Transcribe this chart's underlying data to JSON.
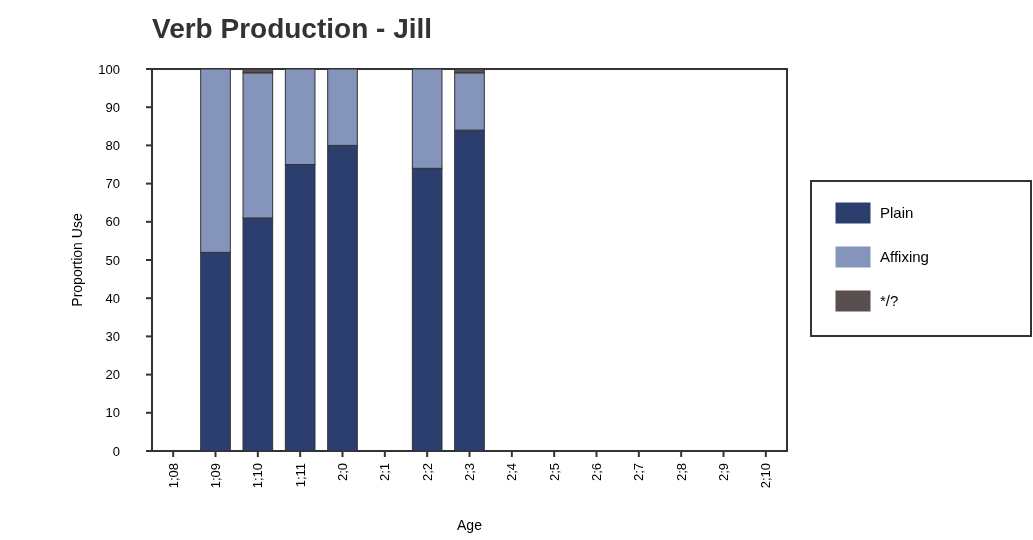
{
  "chart_data": {
    "type": "bar",
    "title": "Verb Production - Jill",
    "xlabel": "Age",
    "ylabel": "Proportion Use",
    "stacked": true,
    "categories": [
      "1;08",
      "1;09",
      "1;10",
      "1;11",
      "2;0",
      "2;1",
      "2;2",
      "2;3",
      "2;4",
      "2;5",
      "2;6",
      "2;7",
      "2;8",
      "2;9",
      "2;10"
    ],
    "series": [
      {
        "name": "Plain",
        "color": "#2c3e6e",
        "values": [
          null,
          52,
          61,
          75,
          80,
          null,
          74,
          84,
          null,
          null,
          null,
          null,
          null,
          null,
          null
        ]
      },
      {
        "name": "Affixing",
        "color": "#8494bb",
        "values": [
          null,
          48,
          38,
          25,
          20,
          null,
          26,
          15,
          null,
          null,
          null,
          null,
          null,
          null,
          null
        ]
      },
      {
        "name": "*/?",
        "color": "#5a4f4f",
        "values": [
          null,
          0,
          1,
          0,
          0,
          null,
          0,
          1,
          null,
          null,
          null,
          null,
          null,
          null,
          null
        ]
      }
    ],
    "ylim": [
      0,
      100
    ],
    "yticks": [
      0,
      10,
      20,
      30,
      40,
      50,
      60,
      70,
      80,
      90,
      100
    ],
    "grid": false,
    "legend": "right"
  }
}
